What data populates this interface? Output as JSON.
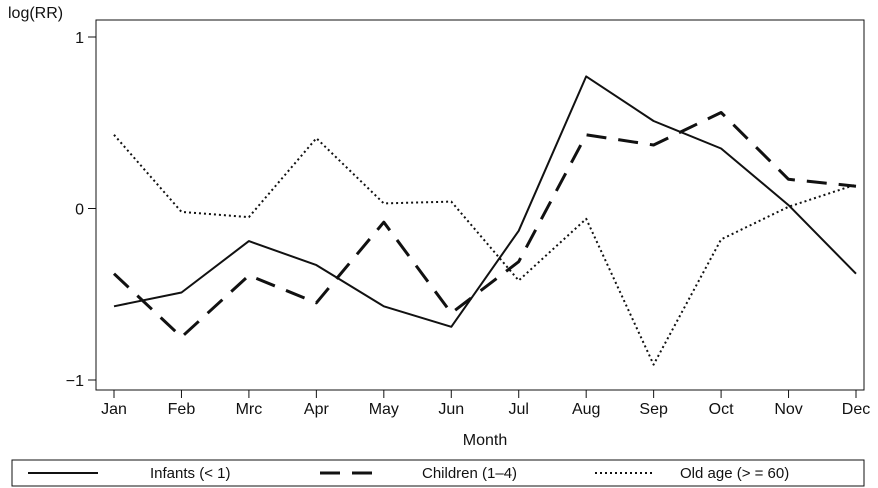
{
  "chart_data": {
    "type": "line",
    "title": "",
    "xlabel": "Month",
    "ylabel": "log(RR)",
    "categories": [
      "Jan",
      "Feb",
      "Mrc",
      "Apr",
      "May",
      "Jun",
      "Jul",
      "Aug",
      "Sep",
      "Oct",
      "Nov",
      "Dec"
    ],
    "ylim": [
      -1,
      1
    ],
    "yticks": [
      "-1",
      "0",
      "1"
    ],
    "grid": false,
    "legend_position": "bottom",
    "series": [
      {
        "name": "Infants (< 1)",
        "style": "solid",
        "color": "#111111",
        "values": [
          -0.57,
          -0.49,
          -0.19,
          -0.33,
          -0.57,
          -0.69,
          -0.13,
          0.77,
          0.51,
          0.35,
          0.02,
          -0.38
        ]
      },
      {
        "name": "Children (1–4)",
        "style": "dashed",
        "color": "#111111",
        "values": [
          -0.38,
          -0.75,
          -0.39,
          -0.55,
          -0.08,
          -0.61,
          -0.31,
          0.43,
          0.37,
          0.56,
          0.17,
          0.13
        ]
      },
      {
        "name": "Old age (> = 60)",
        "style": "dotted",
        "color": "#111111",
        "values": [
          0.43,
          -0.02,
          -0.05,
          0.41,
          0.03,
          0.04,
          -0.42,
          -0.06,
          -0.91,
          -0.18,
          0.01,
          0.14
        ]
      }
    ]
  }
}
